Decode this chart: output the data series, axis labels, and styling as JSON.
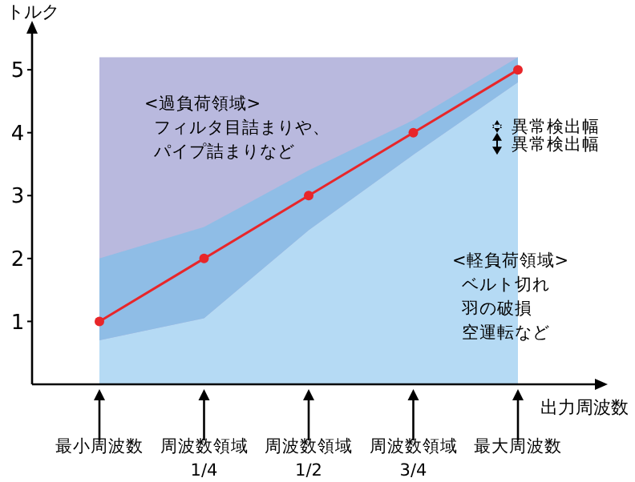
{
  "chart_data": {
    "type": "line",
    "xlabel": "出力周波数",
    "ylabel": "トルク",
    "categories": [
      "最小周波数",
      "周波数領域\n1/4",
      "周波数領域\n1/2",
      "周波数領域\n3/4",
      "最大周波数"
    ],
    "ylim": [
      0,
      5.6
    ],
    "yticks": [
      1,
      2,
      3,
      4,
      5
    ],
    "series": [
      {
        "type": "area",
        "color": "#b9b9de",
        "values": [
          5.2,
          5.2,
          5.2,
          5.2,
          5.2
        ]
      },
      {
        "type": "area",
        "color": "#b5daf4",
        "values": [
          0.7,
          1.05,
          2.45,
          3.65,
          4.8
        ]
      },
      {
        "color": "#e8262a",
        "marker": "circle",
        "values": [
          1,
          2,
          3,
          4,
          5
        ],
        "lower": [
          0.7,
          1.05,
          2.45,
          3.65,
          4.8
        ],
        "upper": [
          2,
          2.5,
          3.4,
          4.2,
          5.2
        ]
      }
    ],
    "annotations": [
      "<過負荷領域>",
      "フィルタ目詰まりや、",
      "パイプ詰まりなど",
      "<軽負荷領域>",
      "ベルト切れ",
      "羽の破損",
      "空運転など",
      "異常検出幅",
      "異常検出幅"
    ]
  }
}
